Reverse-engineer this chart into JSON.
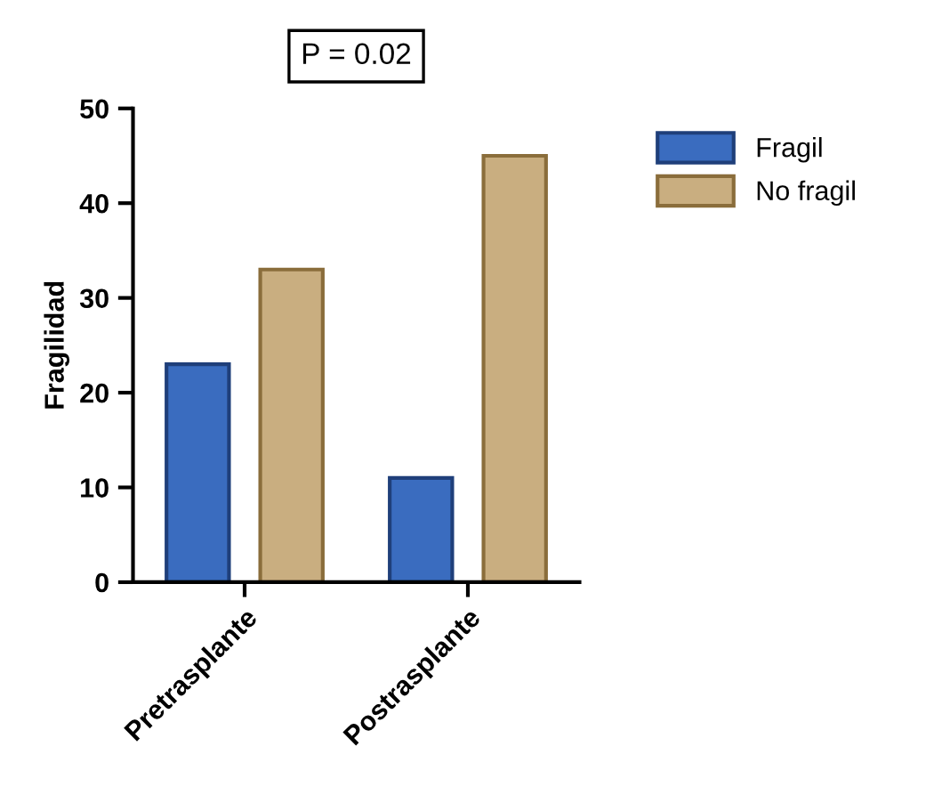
{
  "chart_data": {
    "type": "bar",
    "title": "P = 0.02",
    "ylabel": "Fragilidad",
    "categories": [
      "Pretrasplante",
      "Postrasplante"
    ],
    "series": [
      {
        "name": "Fragil",
        "color": "#3a6cbf",
        "values": [
          23,
          11
        ]
      },
      {
        "name": "No fragil",
        "color": "#c9ae80",
        "values": [
          33,
          45
        ]
      }
    ],
    "ylim": [
      0,
      50
    ],
    "yticks": [
      0,
      10,
      20,
      30,
      40,
      50
    ],
    "grid": false,
    "legend": "top right"
  }
}
